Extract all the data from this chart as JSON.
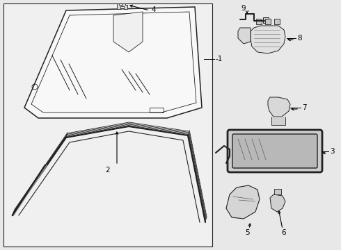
{
  "bg_color": "#e8e8e8",
  "box_bg": "#f0f0f0",
  "line_color": "#222222",
  "label_color": "#000000",
  "white_bg": "#ffffff"
}
